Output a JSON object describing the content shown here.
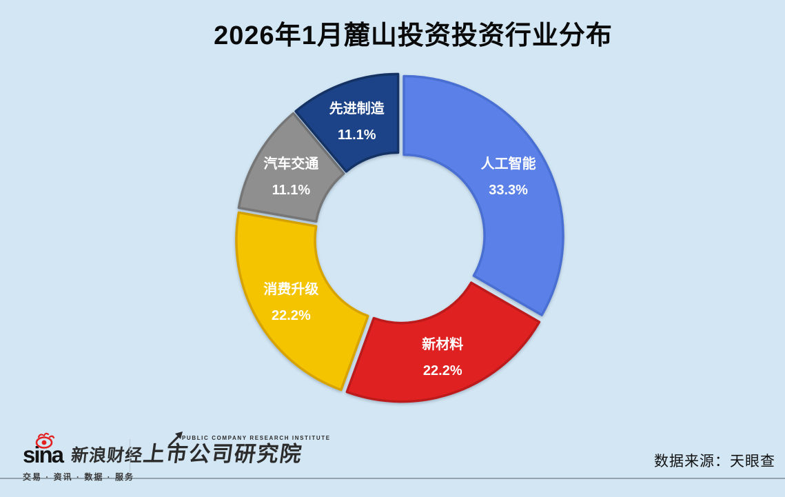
{
  "title": "2026年1月麓山投资投资行业分布",
  "chart_data": {
    "type": "pie",
    "subtype": "donut",
    "title": "2026年1月麓山投资投资行业分布",
    "categories": [
      "人工智能",
      "新材料",
      "消费升级",
      "汽车交通",
      "先进制造"
    ],
    "values": [
      33.3,
      22.2,
      22.2,
      11.1,
      11.1
    ],
    "percent_labels": [
      "33.3%",
      "22.2%",
      "22.2%",
      "11.1%",
      "11.1%"
    ],
    "colors": [
      "#5b81e8",
      "#df2121",
      "#f4c400",
      "#8f8f8f",
      "#1c4387"
    ],
    "edge_colors": [
      "#4a6fd2",
      "#bd1b1b",
      "#d7a300",
      "#767676",
      "#143264"
    ],
    "semantic_names": [
      "slice-artificial-intelligence",
      "slice-new-materials",
      "slice-consumer-upgrade",
      "slice-auto-transportation",
      "slice-advanced-manufacturing"
    ],
    "start_angle_deg": 0,
    "direction": "clockwise",
    "labels_position": "inside",
    "label_color": "#ffffff",
    "legend": "none"
  },
  "footer": {
    "sina_logo": "sina",
    "sina_brand": "新浪财经",
    "sina_tagline": "交易 · 资讯 · 数据 · 服务",
    "institute_en": "PUBLIC COMPANY RESEARCH INSTITUTE",
    "institute_cn": "上市公司研究院",
    "data_source": "数据来源：天眼查"
  },
  "theme": {
    "background": "#d3e6f3",
    "title_color": "#0a0a0a",
    "rule_color": "#93a3ae",
    "sina_red": "#e31f1f",
    "logo_dark": "#2b2b2b"
  }
}
